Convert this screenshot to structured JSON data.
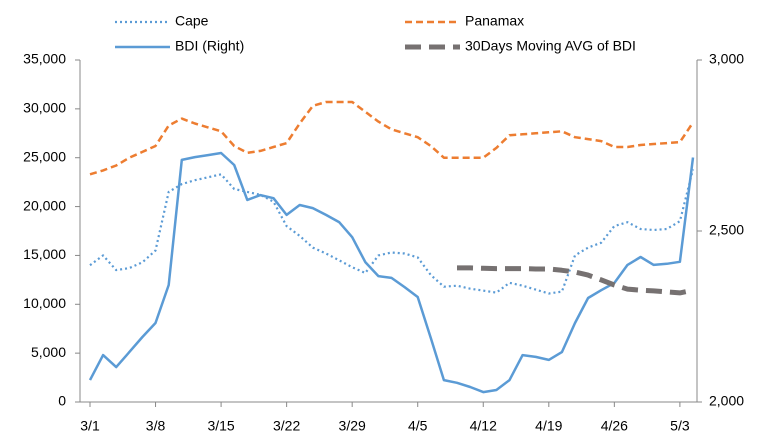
{
  "chart_data": {
    "type": "line",
    "categories": [
      "3/1",
      null,
      null,
      null,
      null,
      "3/8",
      null,
      null,
      null,
      null,
      "3/15",
      null,
      null,
      null,
      null,
      "3/22",
      null,
      null,
      null,
      null,
      "3/29",
      null,
      null,
      null,
      null,
      "4/5",
      null,
      null,
      null,
      null,
      "4/12",
      null,
      null,
      null,
      null,
      "4/19",
      null,
      null,
      null,
      null,
      "4/26",
      null,
      null,
      null,
      null,
      "5/3",
      null
    ],
    "series": [
      {
        "name": "Cape",
        "color": "#5b9bd5",
        "style": "dotted",
        "values": [
          14000,
          15000,
          13500,
          13700,
          14300,
          15500,
          21500,
          22300,
          22700,
          23000,
          23300,
          21800,
          21500,
          21200,
          20500,
          18000,
          17000,
          15800,
          15200,
          14500,
          13800,
          13200,
          15000,
          15300,
          15200,
          14800,
          13000,
          11800,
          11900,
          11600,
          11400,
          11200,
          12200,
          11900,
          11500,
          11100,
          11300,
          15000,
          15800,
          16300,
          18000,
          18400,
          17700,
          17600,
          17700,
          18500,
          23800
        ]
      },
      {
        "name": "Panamax",
        "color": "#ed7d31",
        "style": "dashed",
        "values": [
          23300,
          23700,
          24200,
          25000,
          25600,
          26200,
          28300,
          29000,
          28500,
          28100,
          27700,
          26200,
          25500,
          25700,
          26100,
          26500,
          28500,
          30300,
          30700,
          30700,
          30700,
          29700,
          28700,
          27900,
          27500,
          27100,
          26200,
          25000,
          25000,
          25000,
          25000,
          26000,
          27300,
          27400,
          27500,
          27600,
          27700,
          27100,
          26900,
          26700,
          26100,
          26100,
          26300,
          26400,
          26500,
          26600,
          28600
        ]
      },
      {
        "name": "BDI (Right)",
        "color": "#5b9bd5",
        "style": "solid",
        "axis": "y2",
        "values": [
          2064,
          2137,
          2102,
          2146,
          2190,
          2231,
          2342,
          2708,
          2716,
          2722,
          2728,
          2693,
          2591,
          2605,
          2596,
          2547,
          2576,
          2567,
          2547,
          2526,
          2482,
          2409,
          2368,
          2363,
          2336,
          2307,
          2187,
          2064,
          2056,
          2044,
          2029,
          2035,
          2064,
          2137,
          2132,
          2123,
          2146,
          2231,
          2304,
          2327,
          2348,
          2401,
          2424,
          2401,
          2404,
          2410,
          2715
        ]
      },
      {
        "name": "30Days Moving AVG of BDI",
        "color": "#767171",
        "style": "longdash",
        "axis": "y2",
        "values": [
          null,
          null,
          null,
          null,
          null,
          null,
          null,
          null,
          null,
          null,
          null,
          null,
          null,
          null,
          null,
          null,
          null,
          null,
          null,
          null,
          null,
          null,
          null,
          null,
          null,
          null,
          null,
          null,
          2392,
          2392,
          2391,
          2390,
          2390,
          2390,
          2389,
          2389,
          2385,
          2380,
          2371,
          2357,
          2342,
          2330,
          2327,
          2325,
          2322,
          2319,
          2327
        ]
      }
    ],
    "ylim": [
      0,
      35000
    ],
    "yticks": [
      0,
      {
        "value": 5000,
        "label": "5,000"
      },
      {
        "value": 10000,
        "label": "10,000"
      },
      {
        "value": 15000,
        "label": "15,000"
      },
      {
        "value": 20000,
        "label": "20,000"
      },
      {
        "value": 25000,
        "label": "25,000"
      },
      {
        "value": 30000,
        "label": "30,000"
      },
      {
        "value": 35000,
        "label": "35,000"
      }
    ],
    "y2lim": [
      2000,
      3000
    ],
    "y2ticks": [
      {
        "value": 2000,
        "label": "2,000"
      },
      {
        "value": 2500,
        "label": "2,500"
      },
      {
        "value": 3000,
        "label": "3,000"
      }
    ],
    "grid": false
  }
}
